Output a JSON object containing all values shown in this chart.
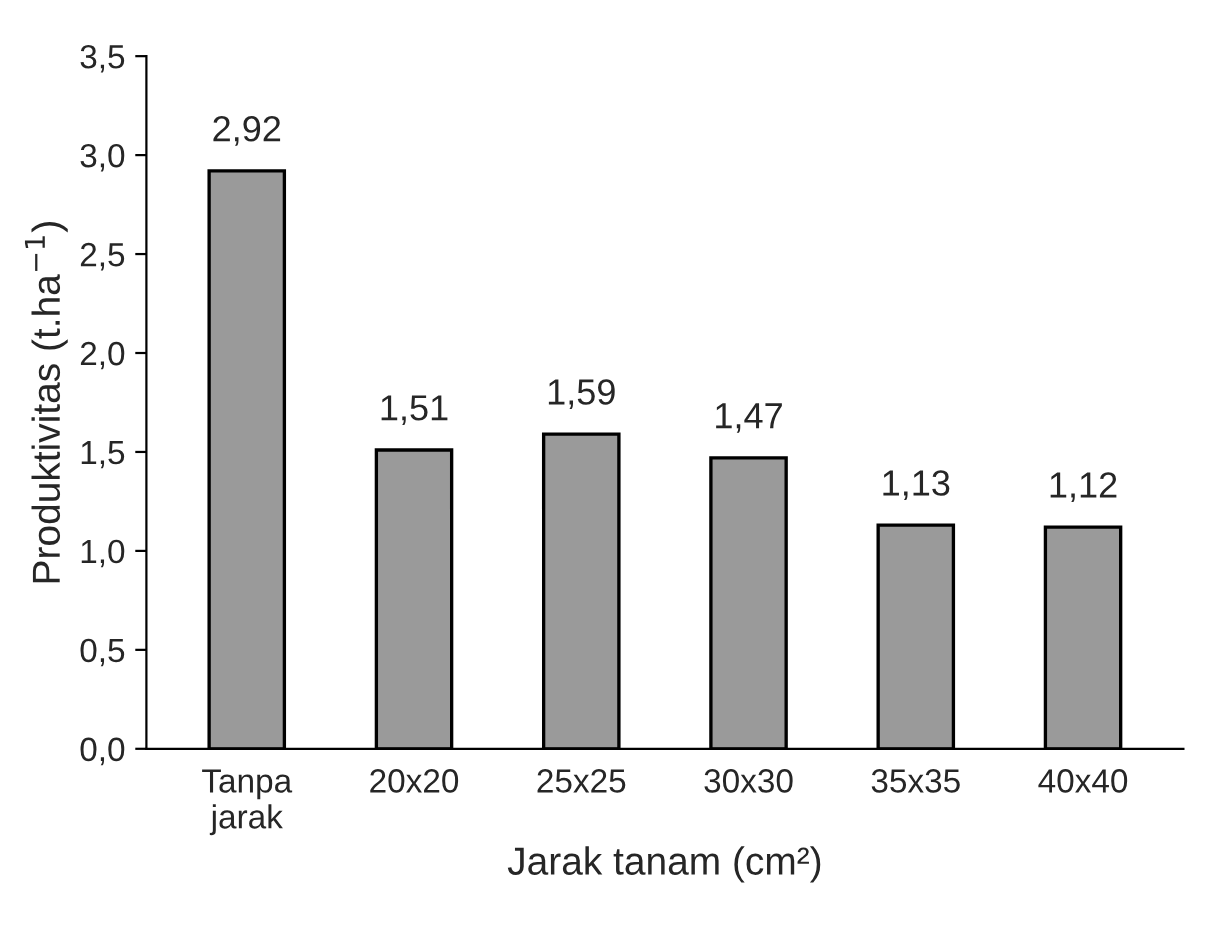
{
  "chart_data": {
    "type": "bar",
    "xlabel": "Jarak tanam (cm²)",
    "ylabel": "Produktivitas (t.ha$^{−1}$)",
    "categories": [
      "Tanpa\njarak",
      "20x20",
      "25x25",
      "30x30",
      "35x35",
      "40x40"
    ],
    "values": [
      2.92,
      1.51,
      1.59,
      1.47,
      1.13,
      1.12
    ],
    "value_labels": [
      "2,92",
      "1,51",
      "1,59",
      "1,47",
      "1,13",
      "1,12"
    ],
    "color": "#9a9a9a",
    "ylim": [
      0,
      3.5
    ],
    "yticks": [
      {
        "value": 0,
        "label": "0,0"
      },
      {
        "value": 0.5,
        "label": "0,5"
      },
      {
        "value": 1.0,
        "label": "1,0"
      },
      {
        "value": 1.5,
        "label": "1,5"
      },
      {
        "value": 2.0,
        "label": "2,0"
      },
      {
        "value": 2.5,
        "label": "2,5"
      },
      {
        "value": 3.0,
        "label": "3,0"
      },
      {
        "value": 3.5,
        "label": "3,5"
      }
    ],
    "grid": false
  }
}
